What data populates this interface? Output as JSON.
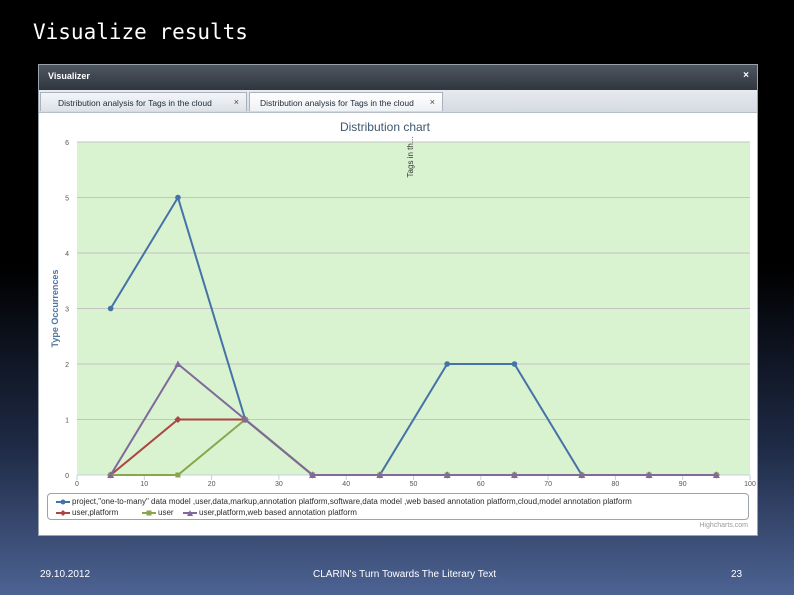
{
  "slide": {
    "title": "Visualize results",
    "footer_date": "29.10.2012",
    "footer_center": "CLARIN's Turn Towards The Literary Text",
    "page_number": "23"
  },
  "window": {
    "title": "Visualizer",
    "close_icon": "close-icon",
    "close_glyph": "×"
  },
  "tabs": [
    {
      "label": "Distribution analysis for Tags in the cloud",
      "close_glyph": "×",
      "active": false
    },
    {
      "label": "Distribution analysis for Tags in the cloud",
      "close_glyph": "×",
      "active": true
    }
  ],
  "chart_data": {
    "type": "line",
    "title": "Distribution chart",
    "xlabel": "",
    "ylabel": "Type Occurrences",
    "rotated_label": "Tags in th...",
    "xlim": [
      0,
      100
    ],
    "ylim": [
      0,
      6
    ],
    "x_ticks": [
      0,
      10,
      20,
      30,
      40,
      50,
      60,
      70,
      80,
      90,
      100
    ],
    "y_ticks": [
      0,
      1,
      2,
      3,
      4,
      5,
      6
    ],
    "grid": true,
    "plot_background": "#d9f2cf",
    "legend_position": "bottom",
    "x": [
      5,
      15,
      25,
      35,
      45,
      55,
      65,
      75,
      85,
      95
    ],
    "series": [
      {
        "name": "project,\"one-to-many\" data model ,user,data,markup,annotation platform,software,data model ,web based annotation platform,cloud,model annotation platform",
        "color": "#4572a7",
        "marker": "circle",
        "values": [
          3,
          5,
          1,
          0,
          0,
          2,
          2,
          0,
          0,
          0
        ]
      },
      {
        "name": "user,platform",
        "color": "#aa4643",
        "marker": "diamond",
        "values": [
          0,
          1,
          1,
          0,
          0,
          0,
          0,
          0,
          0,
          0
        ]
      },
      {
        "name": "user",
        "color": "#89a54e",
        "marker": "square",
        "values": [
          0,
          0,
          1,
          0,
          0,
          0,
          0,
          0,
          0,
          0
        ]
      },
      {
        "name": "user,platform,web based annotation platform",
        "color": "#80699b",
        "marker": "triangle",
        "values": [
          0,
          2,
          1,
          0,
          0,
          0,
          0,
          0,
          0,
          0
        ]
      }
    ],
    "credit": "Highcharts.com"
  }
}
